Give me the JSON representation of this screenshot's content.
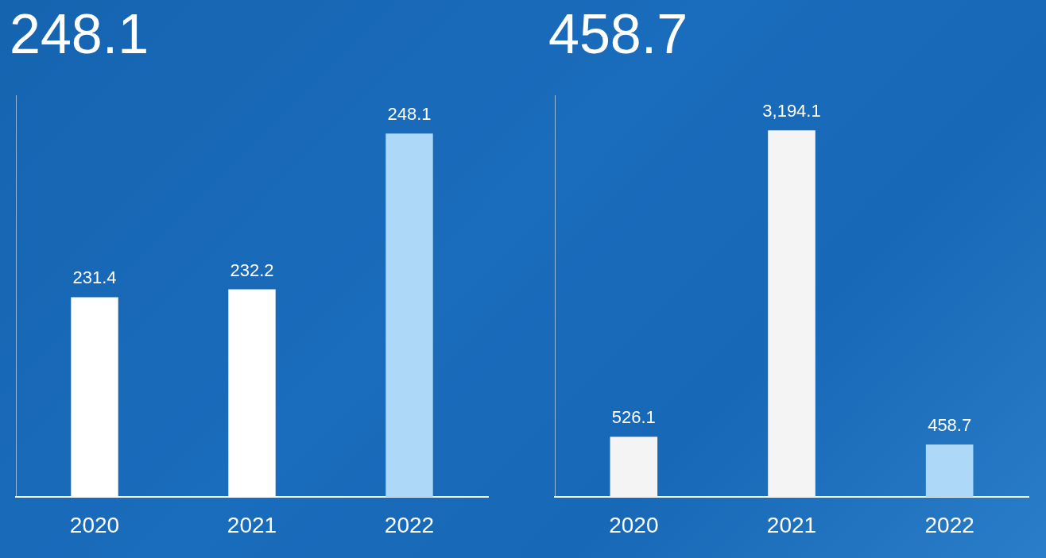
{
  "chart_data": [
    {
      "type": "bar",
      "title": "248.1",
      "categories": [
        "2020",
        "2021",
        "2022"
      ],
      "values": [
        231.4,
        232.2,
        248.1
      ],
      "colors": [
        "#ffffff",
        "#ffffff",
        "#aed8f8"
      ],
      "ylim": [
        211,
        252
      ],
      "data_labels": true,
      "tick_labels": "x",
      "grid": false
    },
    {
      "type": "bar",
      "title": "458.7",
      "categories": [
        "2020",
        "2021",
        "2022"
      ],
      "values": [
        526.1,
        3194.1,
        458.7
      ],
      "value_labels": [
        "526.1",
        "3,194.1",
        "458.7"
      ],
      "colors": [
        "#f4f4f4",
        "#f4f4f4",
        "#aed8f8"
      ],
      "ylim": [
        0,
        3500
      ],
      "data_labels": true,
      "tick_labels": "x",
      "grid": false
    }
  ]
}
